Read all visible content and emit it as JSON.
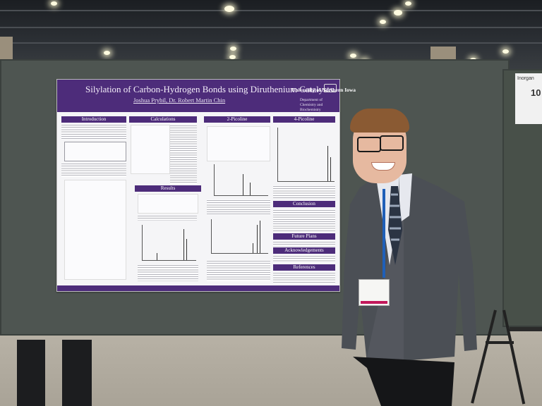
{
  "poster": {
    "title": "Silylation of Carbon-Hydrogen Bonds using Diruthenium Catalysts",
    "authors": "Joshua Prybil, Dr. Robert Martin Chin",
    "university": "University of Northern Iowa",
    "department": "Department of Chemistry and Biochemistry",
    "sections": {
      "introduction": "Introduction",
      "calculations": "Calculations",
      "two_picoline": "2-Picoline",
      "four_picoline": "4-Picoline",
      "results": "Results",
      "conclusion": "Conclusion",
      "future_plans": "Future Plans",
      "acknowledgements": "Acknowledgements",
      "references": "References"
    }
  },
  "right_sign": {
    "line1": "Inorgan",
    "line2": "10"
  },
  "colors": {
    "poster_purple": "#4d2c7a",
    "board_gray": "#4e5551",
    "lanyard_blue": "#1f5fb8"
  }
}
